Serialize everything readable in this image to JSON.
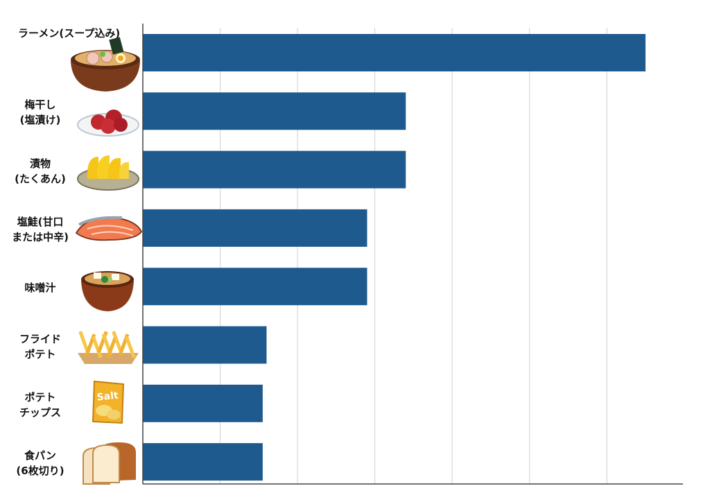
{
  "chart_data": {
    "type": "bar",
    "orientation": "horizontal",
    "categories": [
      "ラーメン(スープ込み)",
      "梅干し\n(塩漬け)",
      "漬物\n(たくあん)",
      "塩鮭(甘口\nまたは中辛)",
      "味噌汁",
      "フライド\nポテト",
      "ポテト\nチップス",
      "食パン\n(6枚切り)"
    ],
    "category_icons": [
      "ramen-bowl-icon",
      "umeboshi-plate-icon",
      "takuan-pickles-icon",
      "salted-salmon-icon",
      "miso-soup-icon",
      "french-fries-icon",
      "potato-chips-bag-icon",
      "bread-loaf-icon"
    ],
    "icon_text": {
      "chips_bag": "Salt"
    },
    "values": [
      6.5,
      3.4,
      3.4,
      2.9,
      2.9,
      1.6,
      1.55,
      1.55
    ],
    "xlim": [
      0,
      7
    ],
    "grid": true,
    "legend": "none",
    "colors": {
      "bar": "#1f5a8e",
      "grid": "#d0d0d0",
      "axis": "#444444"
    }
  }
}
